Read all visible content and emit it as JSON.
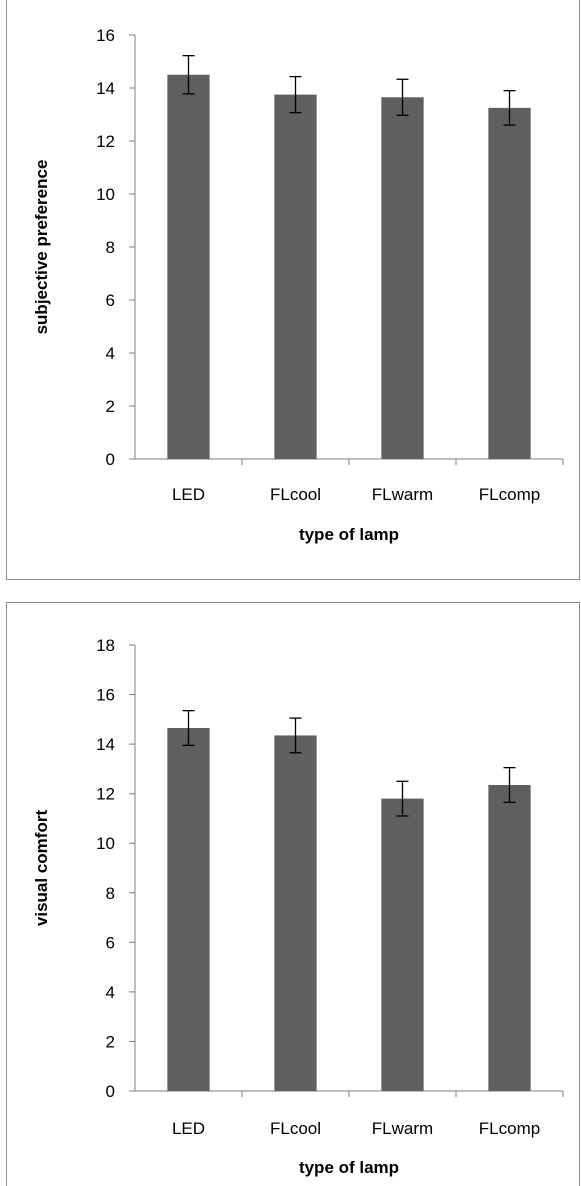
{
  "chart_data": [
    {
      "type": "bar",
      "categories": [
        "LED",
        "FLcool",
        "FLwarm",
        "FLcomp"
      ],
      "values": [
        14.5,
        13.75,
        13.65,
        13.25
      ],
      "errors": [
        0.72,
        0.68,
        0.68,
        0.65
      ],
      "xlabel": "type of lamp",
      "ylabel": "subjective preference",
      "ylim": [
        0,
        16
      ],
      "yticks": [
        0,
        2,
        4,
        6,
        8,
        10,
        12,
        14,
        16
      ],
      "grid": false,
      "bar_color": "#5f5f5f"
    },
    {
      "type": "bar",
      "categories": [
        "LED",
        "FLcool",
        "FLwarm",
        "FLcomp"
      ],
      "values": [
        14.65,
        14.35,
        11.8,
        12.35
      ],
      "errors": [
        0.7,
        0.7,
        0.7,
        0.7
      ],
      "xlabel": "type of lamp",
      "ylabel": "visual comfort",
      "ylim": [
        0,
        18
      ],
      "yticks": [
        0,
        2,
        4,
        6,
        8,
        10,
        12,
        14,
        16,
        18
      ],
      "grid": false,
      "bar_color": "#5f5f5f"
    }
  ]
}
